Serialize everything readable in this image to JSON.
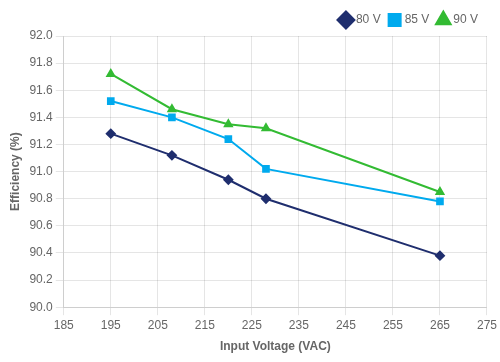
{
  "chart_data": {
    "type": "line",
    "xlabel": "Input Voltage (VAC)",
    "ylabel": "Efficiency (%)",
    "x": [
      195,
      208,
      220,
      228,
      265
    ],
    "series": [
      {
        "name": "80 V",
        "color": "#1f2e6e",
        "marker": "diamond",
        "values": [
          91.28,
          91.12,
          90.94,
          90.8,
          90.38
        ]
      },
      {
        "name": "85 V",
        "color": "#00aaee",
        "marker": "square",
        "values": [
          91.52,
          91.4,
          91.24,
          91.02,
          90.78
        ]
      },
      {
        "name": "90 V",
        "color": "#33bb33",
        "marker": "triangle",
        "values": [
          91.72,
          91.46,
          91.35,
          91.32,
          90.85
        ]
      }
    ],
    "xlim": [
      185,
      275
    ],
    "xticks": [
      185,
      195,
      205,
      215,
      225,
      235,
      245,
      255,
      265,
      275
    ],
    "ylim": [
      90.0,
      92.0
    ],
    "yticks": [
      {
        "value": 90,
        "label": "90.0"
      },
      90.2,
      90.4,
      90.6,
      90.8,
      {
        "value": 91,
        "label": "91.0"
      },
      91.2,
      91.4,
      91.6,
      91.8,
      {
        "value": 92,
        "label": "92.0"
      }
    ],
    "grid": true,
    "legend": "upper right"
  }
}
